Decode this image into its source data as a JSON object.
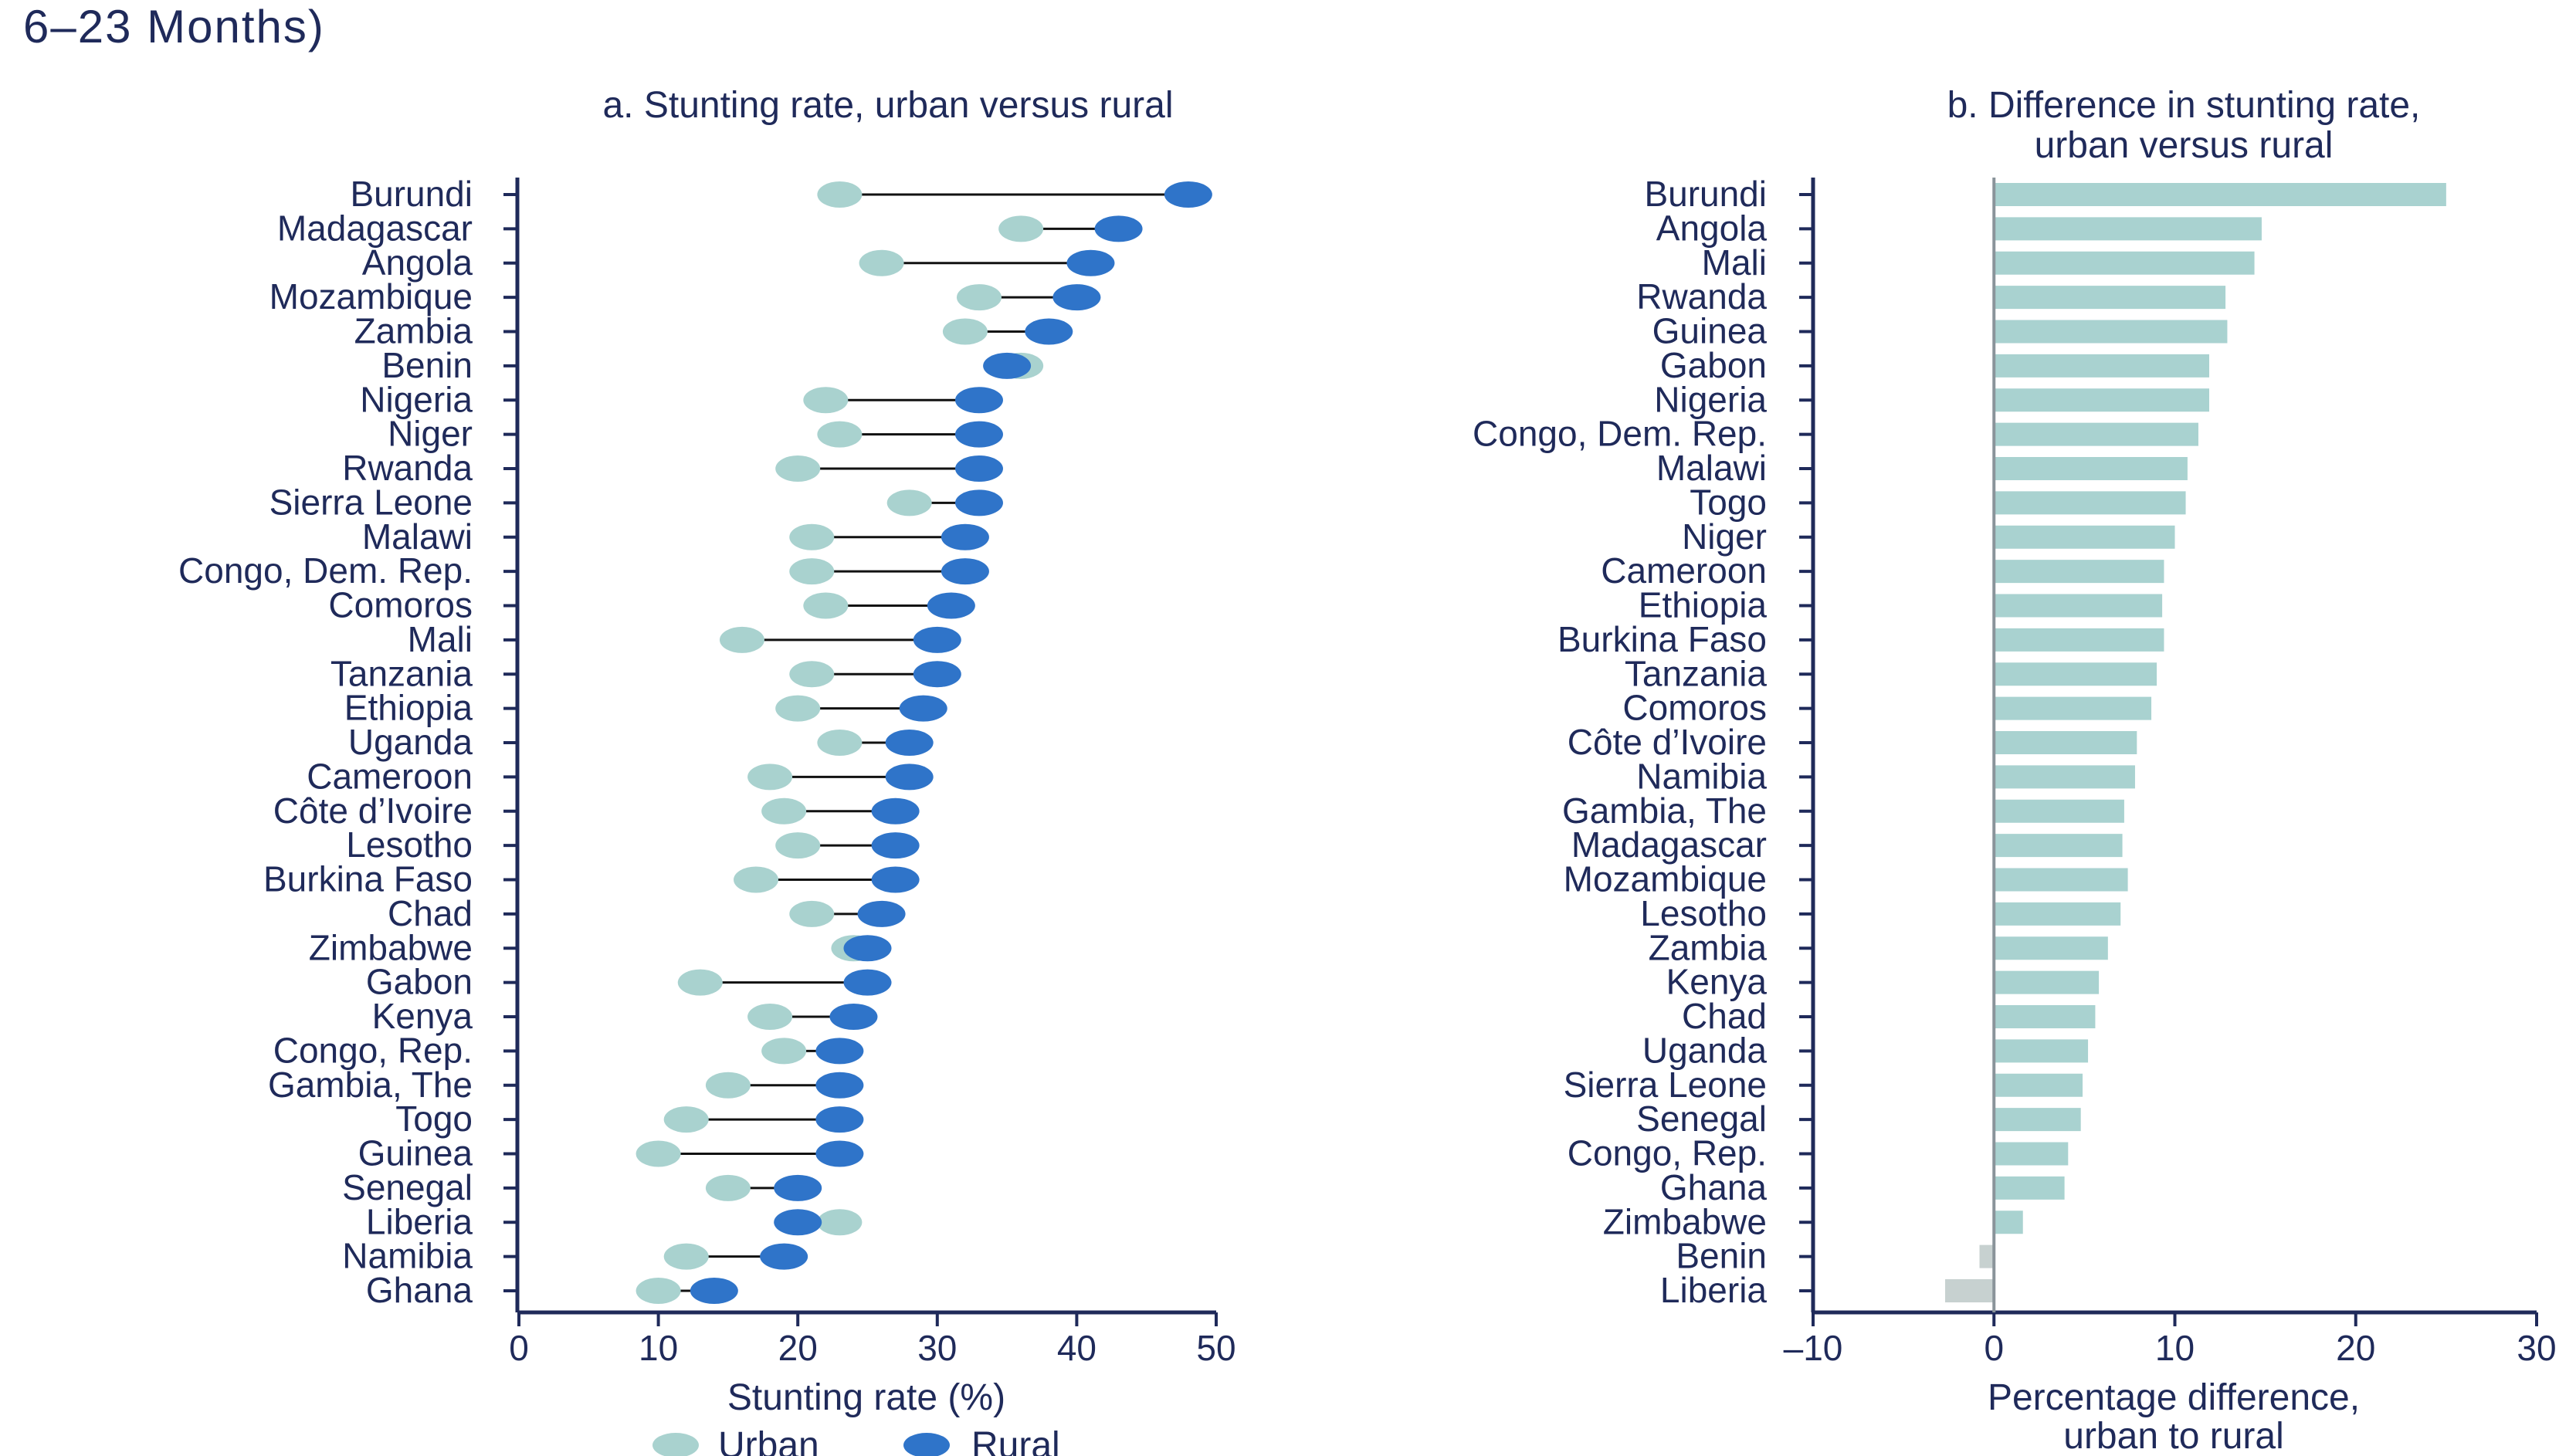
{
  "figure": {
    "cut_header": "6–23 Months)"
  },
  "chart_data": [
    {
      "type": "dumbbell",
      "title": "a. Stunting rate, urban versus rural",
      "xlabel": "Stunting rate (%)",
      "ylabel": "",
      "xlim": [
        0,
        50
      ],
      "xticks": [
        0,
        10,
        20,
        30,
        40,
        50
      ],
      "grid": false,
      "legend": {
        "placement": "bottom",
        "entries": [
          "Urban",
          "Rural"
        ]
      },
      "colors": {
        "urban": "#a9d2cf",
        "rural": "#2f74c9",
        "connector": "#111111"
      },
      "categories": [
        "Burundi",
        "Madagascar",
        "Angola",
        "Mozambique",
        "Zambia",
        "Benin",
        "Nigeria",
        "Niger",
        "Rwanda",
        "Sierra Leone",
        "Malawi",
        "Congo, Dem. Rep.",
        "Comoros",
        "Mali",
        "Tanzania",
        "Ethiopia",
        "Uganda",
        "Cameroon",
        "Côte d’Ivoire",
        "Lesotho",
        "Burkina Faso",
        "Chad",
        "Zimbabwe",
        "Gabon",
        "Kenya",
        "Congo, Rep.",
        "Gambia, The",
        "Togo",
        "Guinea",
        "Senegal",
        "Liberia",
        "Namibia",
        "Ghana"
      ],
      "series": [
        {
          "name": "Urban",
          "values": [
            23,
            36,
            26,
            33,
            32,
            36,
            22,
            23,
            20,
            28,
            21,
            21,
            22,
            16,
            21,
            20,
            23,
            18,
            19,
            20,
            17,
            21,
            24,
            13,
            18,
            19,
            15,
            12,
            10,
            15,
            23,
            12,
            10
          ]
        },
        {
          "name": "Rural",
          "values": [
            48,
            43,
            41,
            40,
            38,
            35,
            33,
            33,
            33,
            33,
            32,
            32,
            31,
            30,
            30,
            29,
            28,
            28,
            27,
            27,
            27,
            26,
            25,
            25,
            24,
            23,
            23,
            23,
            23,
            20,
            20,
            19,
            14
          ]
        }
      ]
    },
    {
      "type": "bar",
      "orientation": "horizontal",
      "title": "b. Difference in stunting rate, urban versus rural",
      "xlabel": "Percentage difference, urban to rural",
      "ylabel": "",
      "xlim": [
        -10,
        30
      ],
      "xticks": [
        -10,
        0,
        10,
        20,
        30
      ],
      "xtick_labels": [
        "–10",
        "0",
        "10",
        "20",
        "30"
      ],
      "grid": false,
      "colors": {
        "bar": "#a9d2d0",
        "negative_bar": "#c7d1d0",
        "zero_line": "#8a949a"
      },
      "categories": [
        "Burundi",
        "Angola",
        "Mali",
        "Rwanda",
        "Guinea",
        "Gabon",
        "Nigeria",
        "Congo, Dem. Rep.",
        "Malawi",
        "Togo",
        "Niger",
        "Cameroon",
        "Ethiopia",
        "Burkina Faso",
        "Tanzania",
        "Comoros",
        "Côte d’Ivoire",
        "Namibia",
        "Gambia, The",
        "Madagascar",
        "Mozambique",
        "Lesotho",
        "Zambia",
        "Kenya",
        "Chad",
        "Uganda",
        "Sierra Leone",
        "Senegal",
        "Congo, Rep.",
        "Ghana",
        "Zimbabwe",
        "Benin",
        "Liberia"
      ],
      "values": [
        25,
        14.8,
        14.4,
        12.8,
        12.9,
        11.9,
        11.9,
        11.3,
        10.7,
        10.6,
        10.0,
        9.4,
        9.3,
        9.4,
        9.0,
        8.7,
        7.9,
        7.8,
        7.2,
        7.1,
        7.4,
        7.0,
        6.3,
        5.8,
        5.6,
        5.2,
        4.9,
        4.8,
        4.1,
        3.9,
        1.6,
        -0.8,
        -2.7
      ]
    }
  ]
}
